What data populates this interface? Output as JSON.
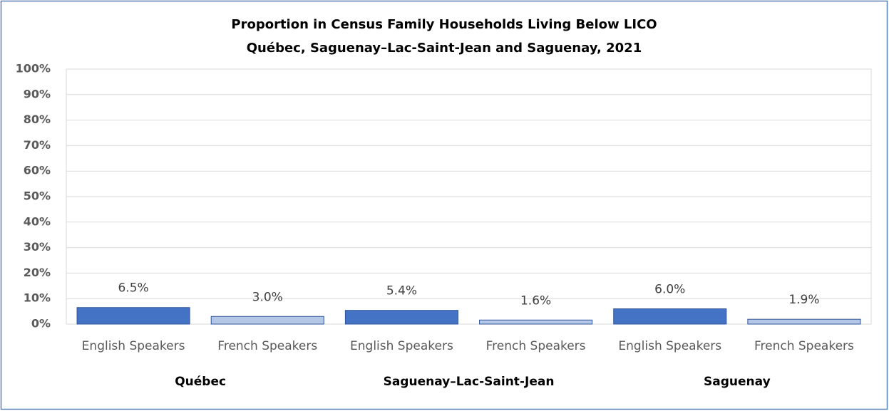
{
  "chart_data": {
    "type": "bar",
    "title": "Proportion in Census Family Households Living Below LICO",
    "subtitle": "Québec, Saguenay–Lac-Saint-Jean  and Saguenay, 2021",
    "categories": [
      "English Speakers",
      "French Speakers",
      "English Speakers",
      "French Speakers",
      "English Speakers",
      "French Speakers"
    ],
    "groups": [
      "Québec",
      "Saguenay–Lac-Saint-Jean",
      "Saguenay"
    ],
    "values": [
      6.5,
      3.0,
      5.4,
      1.6,
      6.0,
      1.9
    ],
    "value_labels": [
      "6.5%",
      "3.0%",
      "5.4%",
      "1.6%",
      "6.0%",
      "1.9%"
    ],
    "colors": [
      "#4472c4",
      "#b4c7e7",
      "#4472c4",
      "#b4c7e7",
      "#4472c4",
      "#b4c7e7"
    ],
    "ylim": [
      0,
      100
    ],
    "yticks": [
      {
        "value": 0,
        "label": "0%"
      },
      {
        "value": 10,
        "label": "10%"
      },
      {
        "value": 20,
        "label": "20%"
      },
      {
        "value": 30,
        "label": "30%"
      },
      {
        "value": 40,
        "label": "40%"
      },
      {
        "value": 50,
        "label": "50%"
      },
      {
        "value": 60,
        "label": "60%"
      },
      {
        "value": 70,
        "label": "70%"
      },
      {
        "value": 80,
        "label": "80%"
      },
      {
        "value": 90,
        "label": "90%"
      },
      {
        "value": 100,
        "label": "100%"
      }
    ],
    "grid": true
  }
}
